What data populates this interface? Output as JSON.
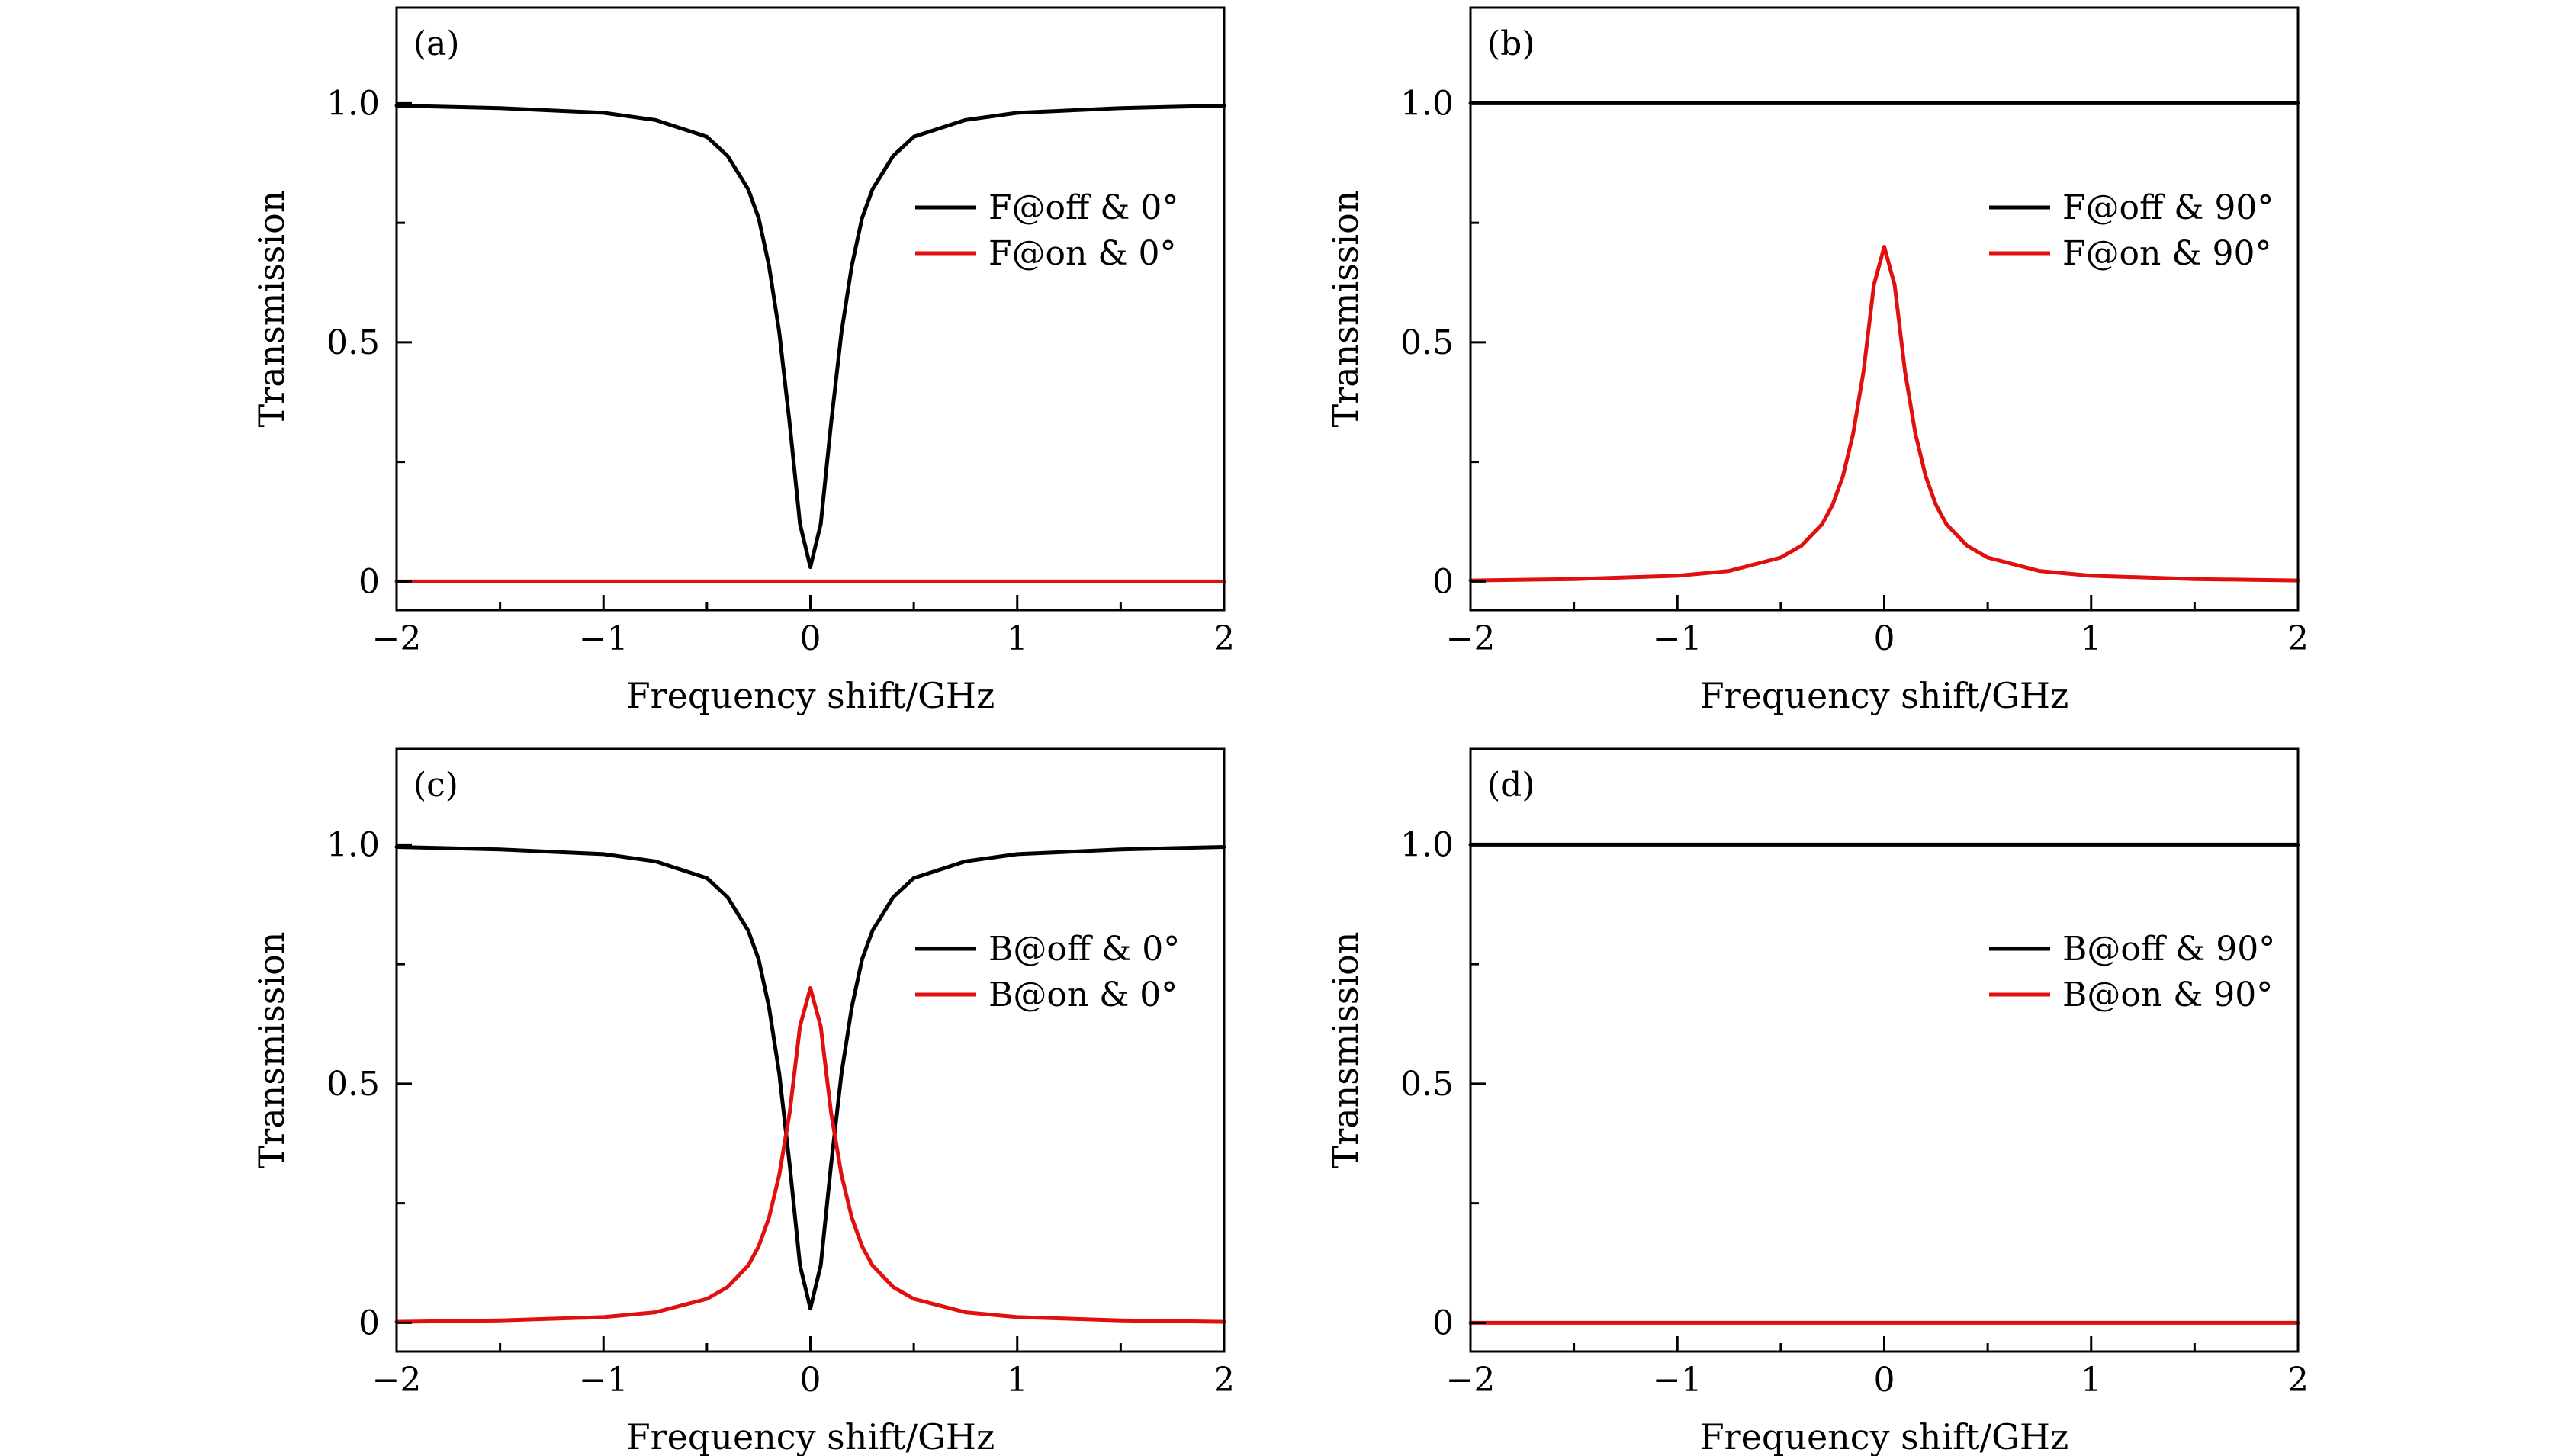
{
  "colors": {
    "off": "#000000",
    "on": "#e01010"
  },
  "chart_data": [
    {
      "panel": "(a)",
      "type": "line",
      "xlabel": "Frequency shift/GHz",
      "ylabel": "Transmission",
      "xlim": [
        -2,
        2
      ],
      "ylim": [
        -0.06,
        1.2
      ],
      "xticks": [
        -2,
        -1,
        0,
        1,
        2
      ],
      "xticklabels": [
        "−2",
        "−1",
        "0",
        "1",
        "2"
      ],
      "yticks": [
        0,
        0.5,
        1.0
      ],
      "yticklabels": [
        "0",
        "0.5",
        "1.0"
      ],
      "legend_position": "right",
      "series": [
        {
          "name": "F@off & 0°",
          "color_key": "off",
          "x": [
            -2,
            -1.5,
            -1,
            -0.75,
            -0.5,
            -0.4,
            -0.3,
            -0.25,
            -0.2,
            -0.15,
            -0.1,
            -0.05,
            0,
            0.05,
            0.1,
            0.15,
            0.2,
            0.25,
            0.3,
            0.4,
            0.5,
            0.75,
            1,
            1.5,
            2
          ],
          "y": [
            0.995,
            0.99,
            0.98,
            0.965,
            0.93,
            0.89,
            0.82,
            0.76,
            0.66,
            0.52,
            0.33,
            0.12,
            0.03,
            0.12,
            0.33,
            0.52,
            0.66,
            0.76,
            0.82,
            0.89,
            0.93,
            0.965,
            0.98,
            0.99,
            0.995
          ]
        },
        {
          "name": "F@on & 0°",
          "color_key": "on",
          "x": [
            -2,
            2
          ],
          "y": [
            0,
            0
          ]
        }
      ]
    },
    {
      "panel": "(b)",
      "type": "line",
      "xlabel": "Frequency shift/GHz",
      "ylabel": "Transmission",
      "xlim": [
        -2,
        2
      ],
      "ylim": [
        -0.06,
        1.2
      ],
      "xticks": [
        -2,
        -1,
        0,
        1,
        2
      ],
      "xticklabels": [
        "−2",
        "−1",
        "0",
        "1",
        "2"
      ],
      "yticks": [
        0,
        0.5,
        1.0
      ],
      "yticklabels": [
        "0",
        "0.5",
        "1.0"
      ],
      "legend_position": "right",
      "series": [
        {
          "name": "F@off & 90°",
          "color_key": "off",
          "x": [
            -2,
            2
          ],
          "y": [
            1.0,
            1.0
          ]
        },
        {
          "name": "F@on & 90°",
          "color_key": "on",
          "x": [
            -2,
            -1.5,
            -1,
            -0.75,
            -0.5,
            -0.4,
            -0.3,
            -0.25,
            -0.2,
            -0.15,
            -0.1,
            -0.05,
            0,
            0.05,
            0.1,
            0.15,
            0.2,
            0.25,
            0.3,
            0.4,
            0.5,
            0.75,
            1,
            1.5,
            2
          ],
          "y": [
            0.002,
            0.005,
            0.012,
            0.022,
            0.05,
            0.075,
            0.12,
            0.16,
            0.22,
            0.31,
            0.44,
            0.62,
            0.7,
            0.62,
            0.44,
            0.31,
            0.22,
            0.16,
            0.12,
            0.075,
            0.05,
            0.022,
            0.012,
            0.005,
            0.002
          ]
        }
      ]
    },
    {
      "panel": "(c)",
      "type": "line",
      "xlabel": "Frequency shift/GHz",
      "ylabel": "Transmission",
      "xlim": [
        -2,
        2
      ],
      "ylim": [
        -0.06,
        1.2
      ],
      "xticks": [
        -2,
        -1,
        0,
        1,
        2
      ],
      "xticklabels": [
        "−2",
        "−1",
        "0",
        "1",
        "2"
      ],
      "yticks": [
        0,
        0.5,
        1.0
      ],
      "yticklabels": [
        "0",
        "0.5",
        "1.0"
      ],
      "legend_position": "right",
      "series": [
        {
          "name": "B@off & 0°",
          "color_key": "off",
          "x": [
            -2,
            -1.5,
            -1,
            -0.75,
            -0.5,
            -0.4,
            -0.3,
            -0.25,
            -0.2,
            -0.15,
            -0.1,
            -0.05,
            0,
            0.05,
            0.1,
            0.15,
            0.2,
            0.25,
            0.3,
            0.4,
            0.5,
            0.75,
            1,
            1.5,
            2
          ],
          "y": [
            0.995,
            0.99,
            0.98,
            0.965,
            0.93,
            0.89,
            0.82,
            0.76,
            0.66,
            0.52,
            0.33,
            0.12,
            0.03,
            0.12,
            0.33,
            0.52,
            0.66,
            0.76,
            0.82,
            0.89,
            0.93,
            0.965,
            0.98,
            0.99,
            0.995
          ]
        },
        {
          "name": "B@on & 0°",
          "color_key": "on",
          "x": [
            -2,
            -1.5,
            -1,
            -0.75,
            -0.5,
            -0.4,
            -0.3,
            -0.25,
            -0.2,
            -0.15,
            -0.1,
            -0.05,
            0,
            0.05,
            0.1,
            0.15,
            0.2,
            0.25,
            0.3,
            0.4,
            0.5,
            0.75,
            1,
            1.5,
            2
          ],
          "y": [
            0.002,
            0.005,
            0.012,
            0.022,
            0.05,
            0.075,
            0.12,
            0.16,
            0.22,
            0.31,
            0.44,
            0.62,
            0.7,
            0.62,
            0.44,
            0.31,
            0.22,
            0.16,
            0.12,
            0.075,
            0.05,
            0.022,
            0.012,
            0.005,
            0.002
          ]
        }
      ]
    },
    {
      "panel": "(d)",
      "type": "line",
      "xlabel": "Frequency shift/GHz",
      "ylabel": "Transmission",
      "xlim": [
        -2,
        2
      ],
      "ylim": [
        -0.06,
        1.2
      ],
      "xticks": [
        -2,
        -1,
        0,
        1,
        2
      ],
      "xticklabels": [
        "−2",
        "−1",
        "0",
        "1",
        "2"
      ],
      "yticks": [
        0,
        0.5,
        1.0
      ],
      "yticklabels": [
        "0",
        "0.5",
        "1.0"
      ],
      "legend_position": "right",
      "series": [
        {
          "name": "B@off & 90°",
          "color_key": "off",
          "x": [
            -2,
            2
          ],
          "y": [
            1.0,
            1.0
          ]
        },
        {
          "name": "B@on & 90°",
          "color_key": "on",
          "x": [
            -2,
            2
          ],
          "y": [
            0,
            0
          ]
        }
      ]
    }
  ]
}
